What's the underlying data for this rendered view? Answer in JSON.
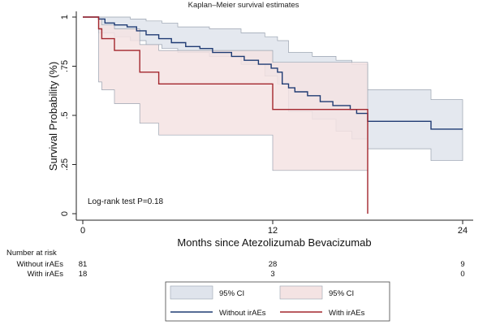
{
  "chart_data": {
    "type": "line",
    "step": true,
    "title": "Kaplan–Meier survival estimates",
    "xlabel": "Months since Atezolizumab Bevacizumab",
    "ylabel": "Survival Probability (%)",
    "xlim": [
      0,
      24
    ],
    "ylim": [
      0,
      1
    ],
    "x_ticks": [
      0,
      12,
      24
    ],
    "y_ticks": [
      {
        "value": 0,
        "label": "0"
      },
      {
        "value": 0.25,
        "label": ".25"
      },
      {
        "value": 0.5,
        "label": ".5"
      },
      {
        "value": 0.75,
        "label": ".75"
      },
      {
        "value": 1,
        "label": "1"
      }
    ],
    "grid": false,
    "annotation": "Log-rank test P=0.18",
    "series": [
      {
        "name": "Without irAEs",
        "color": "#1f3b73",
        "x": [
          0,
          1.0,
          1.4,
          2.0,
          2.8,
          3.4,
          4.0,
          4.8,
          5.6,
          6.5,
          7.4,
          8.2,
          9.4,
          10.2,
          11.1,
          11.9,
          12.3,
          12.6,
          13.0,
          13.4,
          14.2,
          15.0,
          15.8,
          16.9,
          17.3,
          18.0,
          22.0,
          24.0
        ],
        "y": [
          1.0,
          0.99,
          0.97,
          0.96,
          0.95,
          0.93,
          0.91,
          0.89,
          0.87,
          0.85,
          0.84,
          0.82,
          0.8,
          0.78,
          0.76,
          0.74,
          0.72,
          0.66,
          0.64,
          0.62,
          0.6,
          0.57,
          0.55,
          0.53,
          0.51,
          0.47,
          0.43,
          0.43
        ]
      },
      {
        "name": "With irAEs",
        "color": "#a3262d",
        "x": [
          0,
          1.0,
          1.2,
          2.0,
          3.6,
          4.8,
          12.0,
          18.0,
          18.0
        ],
        "y": [
          1.0,
          0.94,
          0.89,
          0.83,
          0.72,
          0.66,
          0.53,
          0.53,
          0.0
        ]
      }
    ],
    "ci_bands": [
      {
        "name": "95% CI",
        "group": "Without irAEs",
        "fill": "#dfe4ec",
        "x": [
          0,
          1.0,
          2.0,
          3.0,
          4.0,
          5.0,
          6.0,
          8.0,
          10.0,
          11.5,
          12.3,
          13.0,
          14.5,
          16.0,
          17.0,
          18.0,
          22.0,
          24.0
        ],
        "upper": [
          1.0,
          1.0,
          1.0,
          0.99,
          0.98,
          0.97,
          0.95,
          0.94,
          0.92,
          0.9,
          0.88,
          0.82,
          0.8,
          0.78,
          0.76,
          0.63,
          0.58,
          0.58
        ],
        "lower": [
          1.0,
          0.92,
          0.9,
          0.88,
          0.86,
          0.84,
          0.82,
          0.8,
          0.76,
          0.7,
          0.66,
          0.52,
          0.48,
          0.42,
          0.38,
          0.33,
          0.27,
          0.27
        ]
      },
      {
        "name": "95% CI",
        "group": "With irAEs",
        "fill": "#f4e3e3",
        "x": [
          0,
          1.0,
          1.2,
          2.0,
          3.6,
          4.8,
          12.0,
          18.0
        ],
        "upper": [
          1.0,
          0.99,
          0.96,
          0.94,
          0.86,
          0.83,
          0.77,
          0.77
        ],
        "lower": [
          1.0,
          0.67,
          0.63,
          0.56,
          0.46,
          0.4,
          0.22,
          0.22
        ]
      }
    ],
    "risk_table": {
      "heading": "Number at risk",
      "rows": [
        {
          "label": "Without irAEs",
          "values": [
            "81",
            "28",
            "9"
          ]
        },
        {
          "label": "With irAEs",
          "values": [
            "18",
            "3",
            "0"
          ]
        }
      ],
      "at_x": [
        0,
        12,
        24
      ]
    },
    "legend": {
      "placement": "bottom",
      "items": [
        {
          "kind": "patch",
          "label": "95% CI",
          "color": "#dfe4ec"
        },
        {
          "kind": "patch",
          "label": "95% CI",
          "color": "#f4e3e3"
        },
        {
          "kind": "line",
          "label": "Without irAEs",
          "color": "#1f3b73"
        },
        {
          "kind": "line",
          "label": "With irAEs",
          "color": "#a3262d"
        }
      ]
    }
  }
}
